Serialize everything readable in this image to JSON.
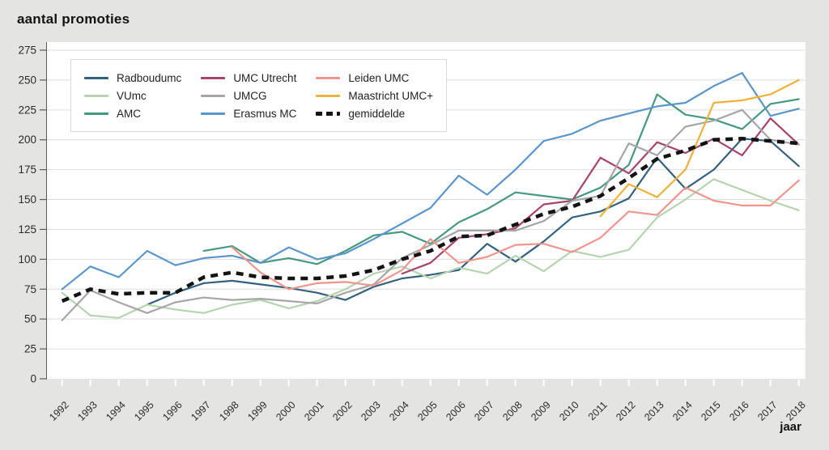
{
  "page": {
    "title": "aantal promoties",
    "xlabel": "jaar",
    "background_color": "#e4e4e3",
    "plot_background_color": "#ffffff",
    "gridline_color": "#dedede",
    "axis_color": "#5a5a5a",
    "tick_label_color": "#2b2b2b",
    "x_tick_color": "#ffffff"
  },
  "chart_data": {
    "type": "line",
    "title": "aantal promoties",
    "xlabel": "jaar",
    "ylabel": "aantal promoties",
    "grid": true,
    "legend_position": "top-left",
    "ylim": [
      0,
      275
    ],
    "ytick_step": 25,
    "x": [
      1992,
      1993,
      1994,
      1995,
      1996,
      1997,
      1998,
      1999,
      2000,
      2001,
      2002,
      2003,
      2004,
      2005,
      2006,
      2007,
      2008,
      2009,
      2010,
      2011,
      2012,
      2013,
      2014,
      2015,
      2016,
      2017,
      2018
    ],
    "series": [
      {
        "name": "Radboudumc",
        "color": "#33617f",
        "dashed": false,
        "values": [
          null,
          null,
          null,
          62,
          72,
          80,
          82,
          79,
          76,
          72,
          66,
          77,
          84,
          87,
          91,
          113,
          98,
          115,
          135,
          140,
          151,
          185,
          159,
          175,
          201,
          199,
          178
        ]
      },
      {
        "name": "VUmc",
        "color": "#b5d4b0",
        "dashed": false,
        "values": [
          72,
          53,
          51,
          62,
          58,
          55,
          62,
          66,
          59,
          65,
          75,
          88,
          94,
          84,
          93,
          88,
          103,
          90,
          107,
          102,
          108,
          135,
          150,
          167,
          158,
          149,
          141
        ]
      },
      {
        "name": "AMC",
        "color": "#47997e",
        "dashed": false,
        "values": [
          null,
          null,
          null,
          null,
          null,
          107,
          111,
          97,
          101,
          96,
          107,
          120,
          123,
          113,
          131,
          142,
          156,
          153,
          150,
          160,
          179,
          238,
          221,
          217,
          209,
          230,
          234
        ]
      },
      {
        "name": "UMC Utrecht",
        "color": "#a64469",
        "dashed": false,
        "values": [
          null,
          null,
          null,
          null,
          null,
          null,
          null,
          null,
          null,
          null,
          null,
          null,
          88,
          97,
          118,
          121,
          126,
          146,
          149,
          185,
          172,
          198,
          189,
          201,
          187,
          218,
          196
        ]
      },
      {
        "name": "UMCG",
        "color": "#a6a6a6",
        "dashed": false,
        "values": [
          49,
          74,
          64,
          55,
          64,
          68,
          66,
          67,
          65,
          63,
          72,
          79,
          101,
          112,
          124,
          124,
          124,
          132,
          149,
          153,
          197,
          187,
          211,
          216,
          225,
          200,
          196
        ]
      },
      {
        "name": "Erasmus MC",
        "color": "#5b95c9",
        "dashed": false,
        "values": [
          75,
          94,
          85,
          107,
          95,
          101,
          103,
          97,
          110,
          100,
          105,
          117,
          130,
          143,
          170,
          154,
          175,
          199,
          205,
          216,
          222,
          228,
          231,
          245,
          256,
          220,
          226
        ]
      },
      {
        "name": "Leiden UMC",
        "color": "#ef958d",
        "dashed": false,
        "values": [
          null,
          null,
          null,
          null,
          null,
          null,
          110,
          89,
          75,
          80,
          81,
          78,
          91,
          117,
          97,
          102,
          112,
          113,
          106,
          118,
          140,
          137,
          160,
          149,
          145,
          145,
          166
        ]
      },
      {
        "name": "Maastricht UMC+",
        "color": "#edb23c",
        "dashed": false,
        "values": [
          null,
          null,
          null,
          null,
          null,
          null,
          null,
          null,
          null,
          null,
          null,
          null,
          null,
          null,
          null,
          null,
          null,
          null,
          null,
          136,
          163,
          152,
          175,
          231,
          233,
          238,
          250
        ]
      },
      {
        "name": "gemiddelde",
        "color": "#141414",
        "dashed": true,
        "values": [
          65,
          75,
          71,
          72,
          72,
          85,
          89,
          85,
          84,
          84,
          86,
          91,
          100,
          107,
          119,
          120,
          129,
          138,
          144,
          153,
          168,
          184,
          191,
          200,
          201,
          199,
          197
        ]
      }
    ]
  }
}
